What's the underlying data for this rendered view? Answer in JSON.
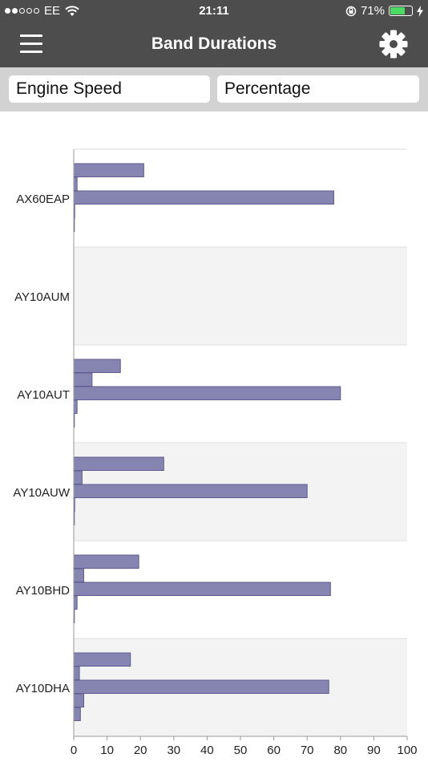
{
  "status_bar": {
    "carrier": "EE",
    "time": "21:11",
    "battery_percent": "71%",
    "battery_level": 0.71,
    "signal_bars_filled": 2,
    "signal_bars_total": 5
  },
  "nav": {
    "title": "Band Durations"
  },
  "filters": {
    "metric": "Engine Speed",
    "unit": "Percentage"
  },
  "colors": {
    "bar_fill": "#8684b0",
    "bar_stroke": "#5e5c91",
    "band_alt": "#f3f3f3",
    "nav_bg": "#4d4d4d"
  },
  "chart_data": {
    "type": "bar",
    "orientation": "horizontal",
    "xlim": [
      0,
      100
    ],
    "x_ticks": [
      "0",
      "10",
      "20",
      "30",
      "40",
      "50",
      "60",
      "70",
      "80",
      "90",
      "100"
    ],
    "categories": [
      "AX60EAP",
      "AY10AUM",
      "AY10AUT",
      "AY10AUW",
      "AY10BHD",
      "AY10DHA"
    ],
    "groups": [
      {
        "category": "AX60EAP",
        "values": [
          21,
          1,
          78,
          0.3,
          0.2
        ]
      },
      {
        "category": "AY10AUM",
        "values": []
      },
      {
        "category": "AY10AUT",
        "values": [
          14,
          5.5,
          80,
          1,
          0.2
        ]
      },
      {
        "category": "AY10AUW",
        "values": [
          27,
          2.5,
          70,
          0.3,
          0
        ]
      },
      {
        "category": "AY10BHD",
        "values": [
          19.5,
          3,
          77,
          1,
          0.2
        ]
      },
      {
        "category": "AY10DHA",
        "values": [
          17,
          1.7,
          76.5,
          3,
          2
        ]
      }
    ]
  }
}
